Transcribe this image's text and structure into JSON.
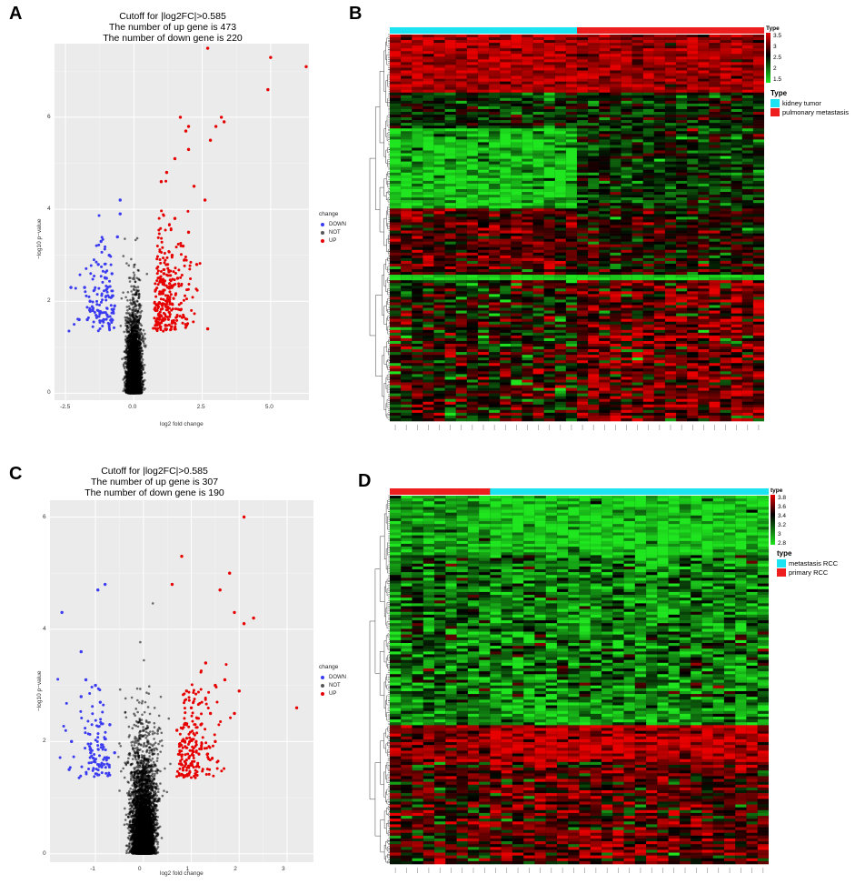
{
  "panels": {
    "A": {
      "letter": "A",
      "title": [
        "Cutoff for |log2FC|>0.585",
        "The number of up gene is 473",
        "The number of down gene is 220"
      ],
      "xlabel": "log2 fold change",
      "ylabel": "−log10 p−value",
      "xticks": [
        "-2.5",
        "0.0",
        "2.5",
        "5.0"
      ],
      "yticks": [
        "0",
        "2",
        "4",
        "6"
      ],
      "legend_title": "change",
      "legend_items": [
        "DOWN",
        "NOT",
        "UP"
      ]
    },
    "B": {
      "letter": "B",
      "scale_title": "Type",
      "scale_ticks": [
        "3.5",
        "3",
        "2.5",
        "2",
        "1.5"
      ],
      "group_title": "Type",
      "groups": [
        "kidney tumor",
        "pulmonary metastasis"
      ]
    },
    "C": {
      "letter": "C",
      "title": [
        "Cutoff for |log2FC|>0.585",
        "The number of up gene is 307",
        "The number of down gene is 190"
      ],
      "xlabel": "log2 fold change",
      "ylabel": "−log10 p−value",
      "xticks": [
        "-1",
        "0",
        "1",
        "2",
        "3"
      ],
      "yticks": [
        "0",
        "2",
        "4",
        "6"
      ],
      "legend_title": "change",
      "legend_items": [
        "DOWN",
        "NOT",
        "UP"
      ]
    },
    "D": {
      "letter": "D",
      "scale_title": "type",
      "scale_ticks": [
        "3.8",
        "3.6",
        "3.4",
        "3.2",
        "3",
        "2.8"
      ],
      "group_title": "type",
      "groups": [
        "metastasis RCC",
        "primary RCC"
      ]
    }
  },
  "colors": {
    "down": "#3b3bf0",
    "not": "#555555",
    "up": "#e60000",
    "cyan": "#1ce3f2",
    "red": "#ef1e1e",
    "hm_green": "#1fe61f",
    "hm_black": "#000000",
    "hm_red": "#e80000",
    "plot_bg": "#ebebeb"
  },
  "chart_data": [
    {
      "type": "scatter",
      "panel": "A",
      "title": "Cutoff for |log2FC|>0.585 / The number of up gene is 473 / The number of down gene is 220",
      "xlabel": "log2 fold change",
      "ylabel": "−log10 p−value",
      "xlim": [
        -2.9,
        6.4
      ],
      "ylim": [
        -0.15,
        7.6
      ],
      "legend": "right",
      "series": [
        {
          "name": "DOWN",
          "count": 220,
          "points": [
            [
              -1.8,
              2.3
            ],
            [
              -1.6,
              2.0
            ],
            [
              -1.5,
              1.8
            ],
            [
              -1.3,
              2.8
            ],
            [
              -1.2,
              3.3
            ],
            [
              -1.0,
              2.5
            ],
            [
              -0.9,
              3.0
            ],
            [
              -0.8,
              2.6
            ],
            [
              -0.7,
              1.9
            ],
            [
              -0.6,
              3.4
            ],
            [
              -0.5,
              4.2
            ],
            [
              -0.5,
              3.9
            ],
            [
              -1.1,
              1.6
            ],
            [
              -0.9,
              1.5
            ],
            [
              -2.3,
              2.3
            ],
            [
              -2.0,
              1.6
            ],
            [
              -1.7,
              1.6
            ]
          ]
        },
        {
          "name": "UP",
          "count": 473,
          "points": [
            [
              6.3,
              7.1
            ],
            [
              5.0,
              7.3
            ],
            [
              4.9,
              6.6
            ],
            [
              2.7,
              7.5
            ],
            [
              2.0,
              5.3
            ],
            [
              1.9,
              5.7
            ],
            [
              1.7,
              6.0
            ],
            [
              2.0,
              5.8
            ],
            [
              3.0,
              5.8
            ],
            [
              3.2,
              6.0
            ],
            [
              3.3,
              5.9
            ],
            [
              2.8,
              5.5
            ],
            [
              1.5,
              5.1
            ],
            [
              1.2,
              4.8
            ],
            [
              1.0,
              4.6
            ],
            [
              2.2,
              4.5
            ],
            [
              2.6,
              4.2
            ],
            [
              1.5,
              3.8
            ],
            [
              2.0,
              3.5
            ],
            [
              1.8,
              3.2
            ],
            [
              1.4,
              3.0
            ],
            [
              1.1,
              2.6
            ],
            [
              1.0,
              2.2
            ],
            [
              0.8,
              1.8
            ],
            [
              2.7,
              1.4
            ],
            [
              0.9,
              1.5
            ],
            [
              1.6,
              2.5
            ],
            [
              2.3,
              2.8
            ]
          ]
        }
      ]
    },
    {
      "type": "heatmap",
      "panel": "B",
      "legend_title": "Type",
      "color_range": [
        1.5,
        3.5
      ],
      "groups": [
        "kidney tumor",
        "pulmonary metastasis"
      ]
    },
    {
      "type": "scatter",
      "panel": "C",
      "title": "Cutoff for |log2FC|>0.585 / The number of up gene is 307 / The number of down gene is 190",
      "xlabel": "log2 fold change",
      "ylabel": "−log10 p−value",
      "xlim": [
        -1.95,
        3.55
      ],
      "ylim": [
        -0.15,
        6.3
      ],
      "legend": "right",
      "series": [
        {
          "name": "DOWN",
          "count": 190,
          "points": [
            [
              -1.7,
              4.3
            ],
            [
              -1.3,
              3.6
            ],
            [
              -1.2,
              3.1
            ],
            [
              -1.5,
              2.0
            ],
            [
              -1.0,
              3.0
            ],
            [
              -0.9,
              2.7
            ],
            [
              -0.8,
              4.8
            ],
            [
              -0.7,
              2.3
            ],
            [
              -0.6,
              1.8
            ],
            [
              -1.1,
              1.8
            ],
            [
              -0.95,
              4.7
            ],
            [
              -1.3,
              2.8
            ],
            [
              -1.55,
              1.5
            ]
          ]
        },
        {
          "name": "UP",
          "count": 307,
          "points": [
            [
              2.1,
              6.0
            ],
            [
              3.2,
              2.6
            ],
            [
              2.3,
              4.2
            ],
            [
              2.1,
              4.1
            ],
            [
              1.8,
              5.0
            ],
            [
              1.9,
              4.3
            ],
            [
              1.6,
              4.7
            ],
            [
              1.3,
              3.4
            ],
            [
              0.8,
              5.3
            ],
            [
              0.6,
              4.8
            ],
            [
              1.5,
              3.0
            ],
            [
              1.7,
              3.1
            ],
            [
              2.0,
              2.9
            ],
            [
              1.9,
              2.5
            ],
            [
              1.2,
              2.3
            ],
            [
              0.9,
              2.9
            ],
            [
              0.7,
              2.2
            ],
            [
              1.5,
              2.0
            ],
            [
              1.0,
              2.6
            ],
            [
              1.4,
              2.5
            ]
          ]
        }
      ]
    },
    {
      "type": "heatmap",
      "panel": "D",
      "legend_title": "type",
      "color_range": [
        2.8,
        3.8
      ],
      "groups": [
        "metastasis RCC",
        "primary RCC"
      ]
    }
  ]
}
